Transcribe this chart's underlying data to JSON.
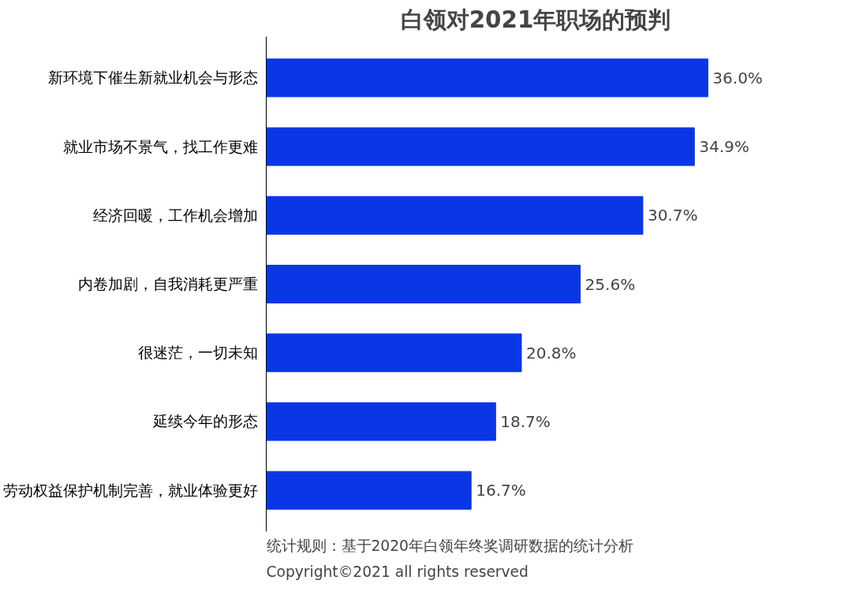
{
  "chart_data": {
    "type": "bar",
    "orientation": "horizontal",
    "title": "白领对2021年职场的预判",
    "categories": [
      "新环境下催生新就业机会与形态",
      "就业市场不景气，找工作更难",
      "经济回暖，工作机会增加",
      "内卷加剧，自我消耗更严重",
      "很迷茫，一切未知",
      "延续今年的形态",
      "劳动权益保护机制完善，就业体验更好"
    ],
    "values": [
      36.0,
      34.9,
      30.7,
      25.6,
      20.8,
      18.7,
      16.7
    ],
    "value_labels": [
      "36.0%",
      "34.9%",
      "30.7%",
      "25.6%",
      "20.8%",
      "18.7%",
      "16.7%"
    ],
    "color": "#0a37e6",
    "grid": false,
    "tick_labels": "y",
    "annotations": [
      "统计规则：基于2020年白领年终奖调研数据的统计分析",
      "Copyright©2021 all rights reserved"
    ]
  }
}
